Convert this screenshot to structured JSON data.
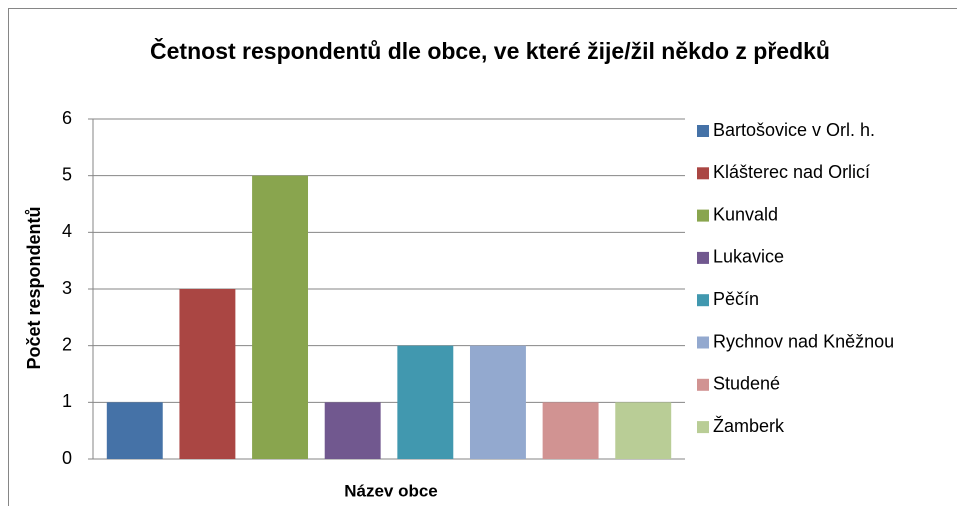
{
  "chart_data": {
    "type": "bar",
    "title": "Četnost respondentů dle obce, ve které žije/žil někdo z předků",
    "x_label": "Název obce",
    "y_label": "Počet respondentů",
    "categories": [
      null
    ],
    "series": [
      {
        "name": "Bartošovice v Orl. h.",
        "color": "#4572a7",
        "values": [
          1
        ]
      },
      {
        "name": "Klášterec nad Orlicí",
        "color": "#aa4643",
        "values": [
          3
        ]
      },
      {
        "name": "Kunvald",
        "color": "#89a54e",
        "values": [
          5
        ]
      },
      {
        "name": "Lukavice",
        "color": "#71588f",
        "values": [
          1
        ]
      },
      {
        "name": "Pěčín",
        "color": "#4198af",
        "values": [
          2
        ]
      },
      {
        "name": "Rychnov nad Kněžnou",
        "color": "#93a9cf",
        "values": [
          2
        ]
      },
      {
        "name": "Studené",
        "color": "#d19392",
        "values": [
          1
        ]
      },
      {
        "name": "Žamberk",
        "color": "#b9cd96",
        "values": [
          1
        ]
      }
    ],
    "ylim": [
      0,
      6
    ],
    "yticks": [
      0,
      1,
      2,
      3,
      4,
      5,
      6
    ],
    "grid": true,
    "legend": "right"
  }
}
